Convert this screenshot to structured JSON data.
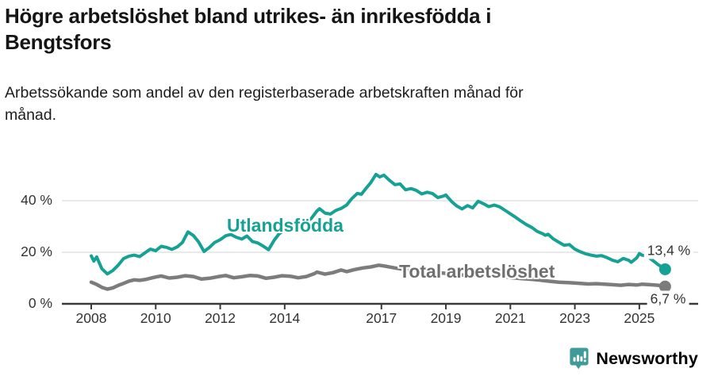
{
  "title": {
    "lines": [
      "Högre arbetslöshet bland utrikes- än inrikesfödda i",
      "Bengtsfors"
    ]
  },
  "subtitle": {
    "lines": [
      "Arbetssökande som andel av den registerbaserade arbetskraften månad för",
      "månad."
    ]
  },
  "footer": {
    "brand": "Newsworthy",
    "logo_icon": "bar-chart-speech-bubble-icon"
  },
  "colors": {
    "teal": "#16a195",
    "gray_line": "#7c7c7c",
    "gray_label": "#6f6f6f",
    "axis": "#3a3a3a",
    "gridline": "#dcdcdc",
    "text": "#333333",
    "brand_teal": "#3f9b98"
  },
  "chart_data": {
    "type": "line",
    "title": "Högre arbetslöshet bland utrikes- än inrikesfödda i Bengtsfors",
    "subtitle": "Arbetssökande som andel av den registerbaserade arbetskraften månad för månad.",
    "x_axis": {
      "ticks": [
        2008,
        2010,
        2012,
        2014,
        2017,
        2019,
        2021,
        2023,
        2025
      ],
      "range": [
        2007.1,
        2026.8
      ],
      "grid": false
    },
    "y_axis": {
      "ticks": [
        0,
        20,
        40
      ],
      "tick_suffix": " %",
      "range": [
        0,
        52
      ],
      "unit": "%",
      "grid": true
    },
    "legend_position": "inline-labels",
    "series": [
      {
        "name": "Utlandsfödda",
        "color": "#16a195",
        "end_label": "13,4 %",
        "end_value": 13.4,
        "points": [
          [
            2008.0,
            18.6
          ],
          [
            2008.08,
            16.6
          ],
          [
            2008.17,
            18.2
          ],
          [
            2008.33,
            13.6
          ],
          [
            2008.5,
            11.6
          ],
          [
            2008.67,
            12.9
          ],
          [
            2008.83,
            14.9
          ],
          [
            2009.0,
            17.5
          ],
          [
            2009.17,
            18.5
          ],
          [
            2009.33,
            18.9
          ],
          [
            2009.5,
            18.3
          ],
          [
            2009.67,
            19.8
          ],
          [
            2009.83,
            21.2
          ],
          [
            2010.0,
            20.6
          ],
          [
            2010.17,
            22.3
          ],
          [
            2010.33,
            21.9
          ],
          [
            2010.5,
            21.1
          ],
          [
            2010.67,
            22.1
          ],
          [
            2010.83,
            23.8
          ],
          [
            2011.0,
            27.9
          ],
          [
            2011.17,
            26.5
          ],
          [
            2011.33,
            24.0
          ],
          [
            2011.5,
            20.3
          ],
          [
            2011.67,
            21.9
          ],
          [
            2011.83,
            23.8
          ],
          [
            2012.0,
            24.9
          ],
          [
            2012.17,
            26.4
          ],
          [
            2012.33,
            26.9
          ],
          [
            2012.5,
            25.8
          ],
          [
            2012.67,
            25.1
          ],
          [
            2012.83,
            26.3
          ],
          [
            2013.0,
            24.2
          ],
          [
            2013.17,
            23.6
          ],
          [
            2013.33,
            22.4
          ],
          [
            2013.5,
            21.0
          ],
          [
            2013.67,
            24.6
          ],
          [
            2013.83,
            27.2
          ],
          [
            2014.0,
            28.6
          ],
          [
            2014.17,
            29.8
          ],
          [
            2014.33,
            29.2
          ],
          [
            2014.5,
            30.4
          ],
          [
            2014.67,
            31.6
          ],
          [
            2014.83,
            33.2
          ],
          [
            2015.0,
            36.0
          ],
          [
            2015.08,
            36.9
          ],
          [
            2015.25,
            35.2
          ],
          [
            2015.42,
            34.8
          ],
          [
            2015.58,
            36.2
          ],
          [
            2015.75,
            37.0
          ],
          [
            2015.92,
            38.3
          ],
          [
            2016.08,
            40.8
          ],
          [
            2016.25,
            42.8
          ],
          [
            2016.38,
            42.5
          ],
          [
            2016.5,
            44.4
          ],
          [
            2016.67,
            47.0
          ],
          [
            2016.83,
            50.2
          ],
          [
            2016.95,
            49.2
          ],
          [
            2017.08,
            49.9
          ],
          [
            2017.25,
            47.9
          ],
          [
            2017.42,
            46.2
          ],
          [
            2017.58,
            46.5
          ],
          [
            2017.75,
            44.2
          ],
          [
            2017.92,
            44.7
          ],
          [
            2018.08,
            44.0
          ],
          [
            2018.25,
            42.6
          ],
          [
            2018.42,
            43.3
          ],
          [
            2018.58,
            42.8
          ],
          [
            2018.75,
            41.2
          ],
          [
            2018.92,
            41.8
          ],
          [
            2019.0,
            42.2
          ],
          [
            2019.17,
            39.8
          ],
          [
            2019.33,
            38.0
          ],
          [
            2019.5,
            36.8
          ],
          [
            2019.67,
            38.1
          ],
          [
            2019.83,
            37.2
          ],
          [
            2020.0,
            39.8
          ],
          [
            2020.17,
            38.8
          ],
          [
            2020.33,
            37.7
          ],
          [
            2020.5,
            38.3
          ],
          [
            2020.67,
            37.6
          ],
          [
            2020.83,
            36.3
          ],
          [
            2021.0,
            34.9
          ],
          [
            2021.17,
            33.5
          ],
          [
            2021.33,
            32.1
          ],
          [
            2021.5,
            30.7
          ],
          [
            2021.67,
            29.6
          ],
          [
            2021.83,
            28.1
          ],
          [
            2022.0,
            27.2
          ],
          [
            2022.08,
            26.6
          ],
          [
            2022.17,
            27.0
          ],
          [
            2022.33,
            25.2
          ],
          [
            2022.5,
            23.9
          ],
          [
            2022.67,
            22.7
          ],
          [
            2022.83,
            23.0
          ],
          [
            2023.0,
            21.2
          ],
          [
            2023.17,
            20.2
          ],
          [
            2023.33,
            19.4
          ],
          [
            2023.5,
            18.9
          ],
          [
            2023.67,
            18.5
          ],
          [
            2023.83,
            18.7
          ],
          [
            2024.0,
            17.9
          ],
          [
            2024.17,
            16.9
          ],
          [
            2024.33,
            16.3
          ],
          [
            2024.5,
            17.6
          ],
          [
            2024.67,
            16.9
          ],
          [
            2024.75,
            16.1
          ],
          [
            2024.92,
            17.8
          ],
          [
            2025.0,
            19.5
          ],
          [
            2025.08,
            18.9
          ],
          [
            2025.25,
            18.4
          ],
          [
            2025.42,
            16.8
          ],
          [
            2025.58,
            15.2
          ],
          [
            2025.8,
            13.4
          ]
        ]
      },
      {
        "name": "Total arbetslöshet",
        "color": "#7c7c7c",
        "end_label": "6,7 %",
        "end_value": 6.7,
        "points": [
          [
            2008.0,
            8.4
          ],
          [
            2008.17,
            7.5
          ],
          [
            2008.33,
            6.4
          ],
          [
            2008.5,
            5.7
          ],
          [
            2008.67,
            6.2
          ],
          [
            2008.83,
            7.1
          ],
          [
            2009.0,
            7.9
          ],
          [
            2009.17,
            8.8
          ],
          [
            2009.33,
            9.3
          ],
          [
            2009.5,
            9.1
          ],
          [
            2009.67,
            9.4
          ],
          [
            2009.83,
            9.9
          ],
          [
            2010.0,
            10.4
          ],
          [
            2010.17,
            10.8
          ],
          [
            2010.42,
            10.0
          ],
          [
            2010.67,
            10.3
          ],
          [
            2010.92,
            10.9
          ],
          [
            2011.17,
            10.6
          ],
          [
            2011.42,
            9.6
          ],
          [
            2011.67,
            9.9
          ],
          [
            2011.92,
            10.5
          ],
          [
            2012.17,
            11.0
          ],
          [
            2012.42,
            10.1
          ],
          [
            2012.67,
            10.5
          ],
          [
            2012.92,
            11.0
          ],
          [
            2013.17,
            10.8
          ],
          [
            2013.42,
            9.9
          ],
          [
            2013.67,
            10.3
          ],
          [
            2013.92,
            10.9
          ],
          [
            2014.17,
            10.7
          ],
          [
            2014.42,
            10.1
          ],
          [
            2014.67,
            10.6
          ],
          [
            2014.92,
            11.7
          ],
          [
            2015.0,
            12.3
          ],
          [
            2015.25,
            11.5
          ],
          [
            2015.5,
            12.1
          ],
          [
            2015.75,
            13.1
          ],
          [
            2015.92,
            12.5
          ],
          [
            2016.17,
            13.3
          ],
          [
            2016.42,
            13.9
          ],
          [
            2016.67,
            14.3
          ],
          [
            2016.92,
            15.0
          ],
          [
            2017.17,
            14.5
          ],
          [
            2017.42,
            13.9
          ],
          [
            2017.67,
            13.4
          ],
          [
            2017.92,
            13.1
          ],
          [
            2018.25,
            12.6
          ],
          [
            2018.58,
            12.1
          ],
          [
            2018.92,
            11.9
          ],
          [
            2019.25,
            11.4
          ],
          [
            2019.58,
            11.1
          ],
          [
            2019.92,
            11.4
          ],
          [
            2020.08,
            11.6
          ],
          [
            2020.42,
            11.1
          ],
          [
            2020.75,
            10.6
          ],
          [
            2021.0,
            10.2
          ],
          [
            2021.33,
            9.8
          ],
          [
            2021.67,
            9.5
          ],
          [
            2021.92,
            9.2
          ],
          [
            2022.17,
            8.8
          ],
          [
            2022.5,
            8.4
          ],
          [
            2022.83,
            8.2
          ],
          [
            2023.08,
            8.0
          ],
          [
            2023.42,
            7.7
          ],
          [
            2023.67,
            7.8
          ],
          [
            2023.92,
            7.6
          ],
          [
            2024.17,
            7.4
          ],
          [
            2024.42,
            7.2
          ],
          [
            2024.67,
            7.5
          ],
          [
            2024.92,
            7.3
          ],
          [
            2025.08,
            7.6
          ],
          [
            2025.33,
            7.4
          ],
          [
            2025.58,
            7.2
          ],
          [
            2025.8,
            6.7
          ]
        ]
      }
    ]
  }
}
